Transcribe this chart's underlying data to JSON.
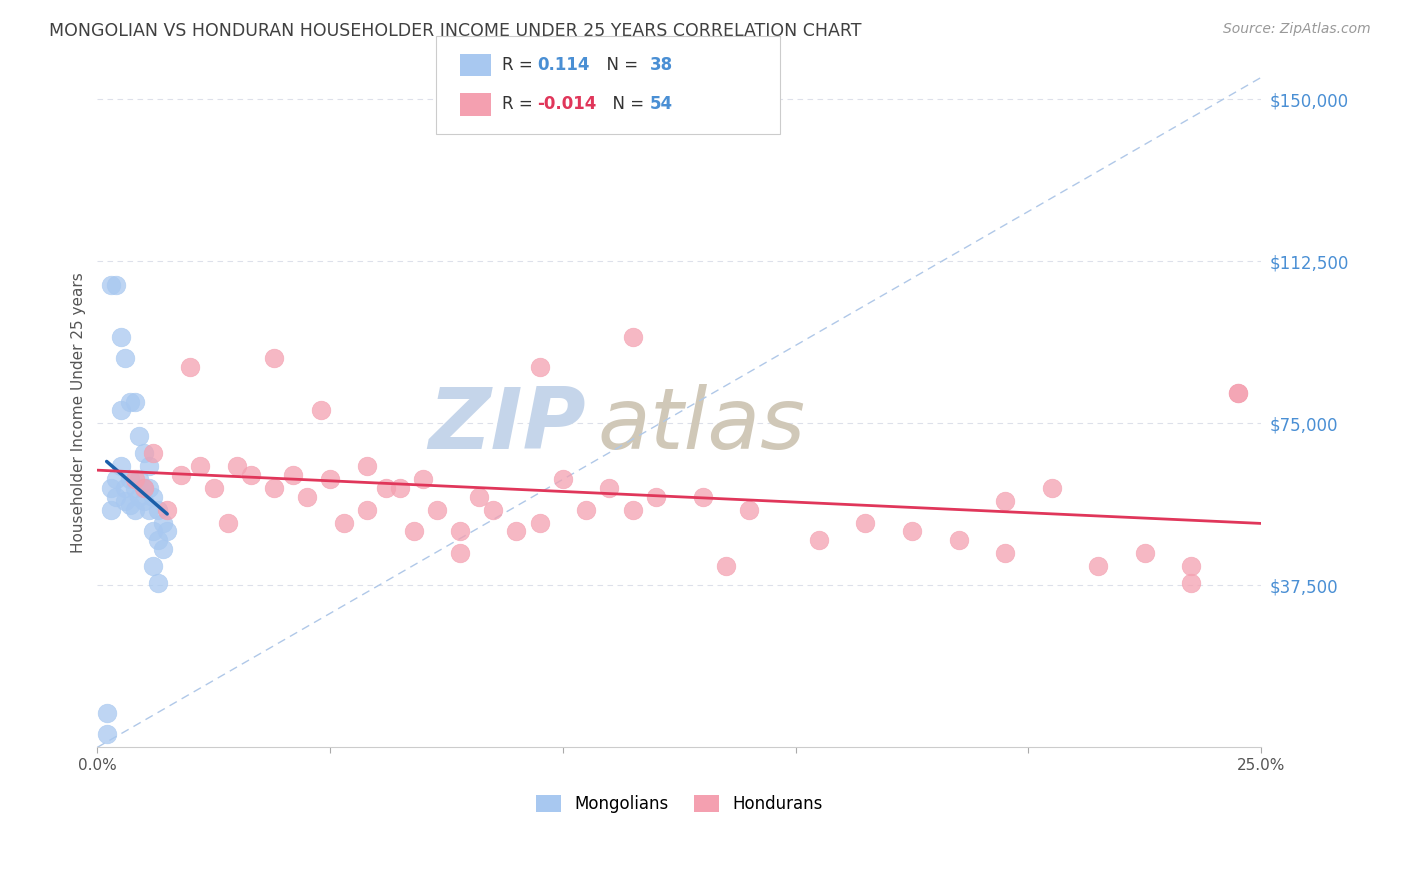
{
  "title": "MONGOLIAN VS HONDURAN HOUSEHOLDER INCOME UNDER 25 YEARS CORRELATION CHART",
  "source": "Source: ZipAtlas.com",
  "ylabel_label": "Householder Income Under 25 years",
  "y_tick_labels": [
    "$37,500",
    "$75,000",
    "$112,500",
    "$150,000"
  ],
  "y_tick_values": [
    37500,
    75000,
    112500,
    150000
  ],
  "y_min": 0,
  "y_max": 155000,
  "x_min": 0.0,
  "x_max": 0.25,
  "mongolian_R": "0.114",
  "mongolian_N": "38",
  "honduran_R": "-0.014",
  "honduran_N": "54",
  "mongolian_color": "#a8c8f0",
  "honduran_color": "#f4a0b0",
  "mongolian_line_color": "#1a5faa",
  "honduran_line_color": "#e0365a",
  "dashed_line_color": "#b0c8e8",
  "background_color": "#ffffff",
  "grid_color": "#dde0ea",
  "title_color": "#404040",
  "source_color": "#999999",
  "yaxis_label_color": "#4a8fd4",
  "watermark_zip_color": "#c5d5ea",
  "watermark_atlas_color": "#d0c8b8",
  "legend_border_color": "#cccccc",
  "mongolians_x": [
    0.002,
    0.002,
    0.003,
    0.003,
    0.004,
    0.004,
    0.005,
    0.005,
    0.006,
    0.006,
    0.007,
    0.007,
    0.008,
    0.008,
    0.009,
    0.009,
    0.01,
    0.01,
    0.011,
    0.011,
    0.012,
    0.012,
    0.013,
    0.013,
    0.014,
    0.014,
    0.015,
    0.003,
    0.004,
    0.005,
    0.006,
    0.007,
    0.008,
    0.009,
    0.01,
    0.011,
    0.012,
    0.013
  ],
  "mongolians_y": [
    8000,
    3000,
    60000,
    55000,
    62000,
    58000,
    78000,
    65000,
    60000,
    57000,
    62000,
    56000,
    60000,
    55000,
    62000,
    58000,
    60000,
    57000,
    60000,
    55000,
    58000,
    50000,
    55000,
    48000,
    52000,
    46000,
    50000,
    107000,
    107000,
    95000,
    90000,
    80000,
    80000,
    72000,
    68000,
    65000,
    42000,
    38000
  ],
  "hondurans_x": [
    0.008,
    0.01,
    0.015,
    0.018,
    0.022,
    0.025,
    0.03,
    0.033,
    0.038,
    0.042,
    0.045,
    0.05,
    0.053,
    0.058,
    0.062,
    0.065,
    0.07,
    0.073,
    0.078,
    0.082,
    0.085,
    0.09,
    0.095,
    0.1,
    0.105,
    0.11,
    0.115,
    0.12,
    0.13,
    0.14,
    0.155,
    0.165,
    0.175,
    0.185,
    0.195,
    0.205,
    0.215,
    0.225,
    0.235,
    0.245,
    0.012,
    0.02,
    0.028,
    0.038,
    0.048,
    0.058,
    0.068,
    0.078,
    0.095,
    0.115,
    0.135,
    0.195,
    0.235,
    0.245
  ],
  "hondurans_y": [
    62000,
    60000,
    55000,
    63000,
    65000,
    60000,
    65000,
    63000,
    60000,
    63000,
    58000,
    62000,
    52000,
    55000,
    60000,
    60000,
    62000,
    55000,
    50000,
    58000,
    55000,
    50000,
    52000,
    62000,
    55000,
    60000,
    55000,
    58000,
    58000,
    55000,
    48000,
    52000,
    50000,
    48000,
    45000,
    60000,
    42000,
    45000,
    42000,
    82000,
    68000,
    88000,
    52000,
    90000,
    78000,
    65000,
    50000,
    45000,
    88000,
    95000,
    42000,
    57000,
    38000,
    82000
  ]
}
